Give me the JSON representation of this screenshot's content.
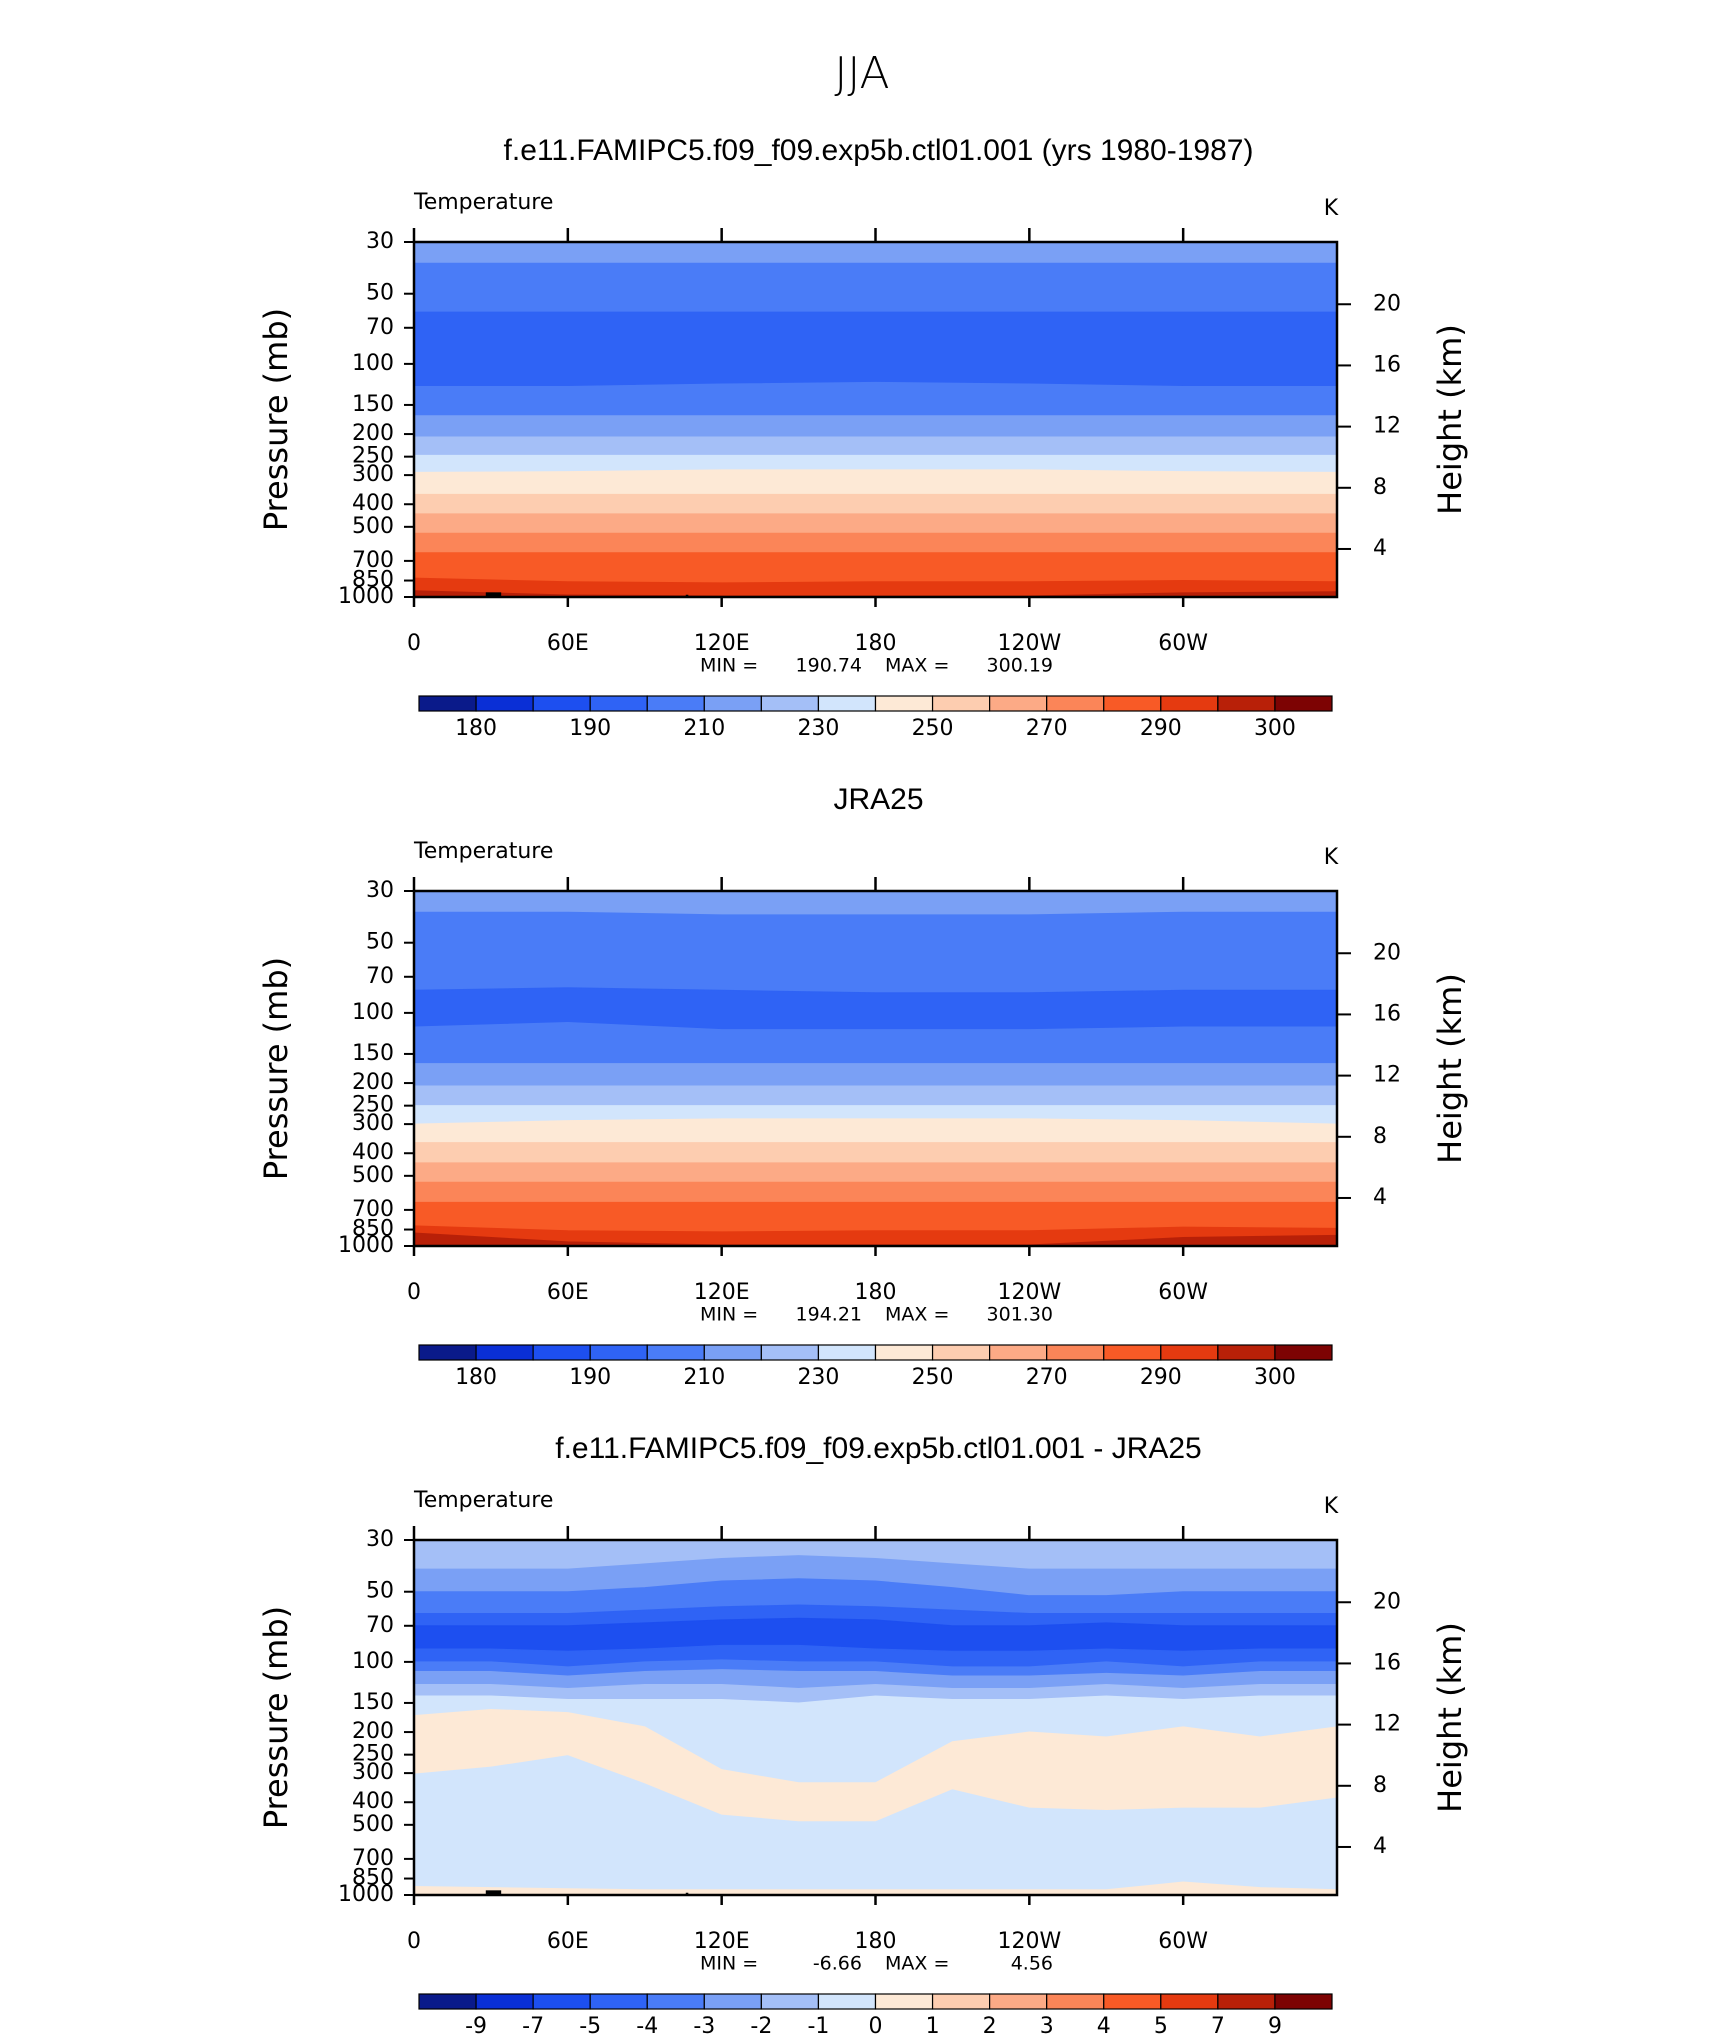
{
  "title": "JJA",
  "chart_data": [
    {
      "type": "contour",
      "title": "f.e11.FAMIPC5.f09_f09.exp5b.ctl01.001 (yrs 1980-1987)",
      "variable": "Temperature",
      "units": "K",
      "ylabel": "Pressure (mb)",
      "y2label": "Height (km)",
      "xlim": [
        0,
        360
      ],
      "xticks": [
        0,
        {
          "value": 60,
          "label": "60E"
        },
        {
          "value": 120,
          "label": "120E"
        },
        180,
        {
          "value": 240,
          "label": "120W"
        },
        {
          "value": 300,
          "label": "60W"
        }
      ],
      "ylim": [
        1000,
        30
      ],
      "ylog": true,
      "yticks": [
        30,
        50,
        70,
        100,
        150,
        200,
        250,
        300,
        400,
        500,
        700,
        850,
        1000
      ],
      "y2lim": [
        0.86,
        24.07
      ],
      "y2ticks": [
        4,
        8,
        12,
        16,
        20
      ],
      "stats": {
        "min_label": "MIN =",
        "min": 190.74,
        "max_label": "MAX =",
        "max": 300.19
      },
      "land_mask": true,
      "colorbar": {
        "levels": [
          180,
          185,
          190,
          200,
          210,
          220,
          230,
          240,
          250,
          260,
          270,
          280,
          290,
          295,
          300
        ],
        "label_every": 2,
        "colors": [
          "#0a1a8a",
          "#0a2fd6",
          "#1d4ff0",
          "#2f63f5",
          "#4a7cf7",
          "#7aa0f5",
          "#a4bff7",
          "#d2e5fc",
          "#fde9d6",
          "#fdcdb0",
          "#fcaa86",
          "#fb8558",
          "#f85a26",
          "#e53a10",
          "#b82008",
          "#7d0303"
        ]
      },
      "lon": [
        0,
        60,
        120,
        180,
        240,
        300,
        360
      ],
      "bands": [
        {
          "bin": 5,
          "top": [
            30,
            30,
            30,
            30,
            30,
            30,
            30
          ]
        },
        {
          "bin": 4,
          "top": [
            37,
            37,
            37,
            37,
            37,
            37,
            37
          ]
        },
        {
          "bin": 3,
          "top": [
            60,
            60,
            60,
            60,
            60,
            60,
            60
          ]
        },
        {
          "bin": 4,
          "top": [
            125,
            125,
            122,
            120,
            122,
            125,
            125
          ]
        },
        {
          "bin": 5,
          "top": [
            167,
            167,
            167,
            167,
            167,
            167,
            167
          ]
        },
        {
          "bin": 6,
          "top": [
            206,
            206,
            206,
            206,
            206,
            206,
            206
          ]
        },
        {
          "bin": 7,
          "top": [
            247,
            247,
            247,
            247,
            247,
            247,
            247
          ]
        },
        {
          "bin": 8,
          "top": [
            292,
            290,
            285,
            285,
            285,
            290,
            292
          ]
        },
        {
          "bin": 9,
          "top": [
            363,
            363,
            363,
            363,
            363,
            363,
            363
          ]
        },
        {
          "bin": 10,
          "top": [
            440,
            440,
            440,
            440,
            440,
            440,
            440
          ]
        },
        {
          "bin": 11,
          "top": [
            533,
            533,
            533,
            533,
            533,
            533,
            533
          ]
        },
        {
          "bin": 12,
          "top": [
            646,
            646,
            646,
            646,
            646,
            646,
            646
          ]
        },
        {
          "bin": 13,
          "top": [
            830,
            860,
            870,
            860,
            860,
            850,
            860
          ]
        },
        {
          "bin": 14,
          "top": [
            940,
            980,
            990,
            990,
            990,
            960,
            950
          ]
        }
      ]
    },
    {
      "type": "contour",
      "title": "JRA25",
      "variable": "Temperature",
      "units": "K",
      "ylabel": "Pressure (mb)",
      "y2label": "Height (km)",
      "xlim": [
        0,
        360
      ],
      "xticks": [
        0,
        {
          "value": 60,
          "label": "60E"
        },
        {
          "value": 120,
          "label": "120E"
        },
        180,
        {
          "value": 240,
          "label": "120W"
        },
        {
          "value": 300,
          "label": "60W"
        }
      ],
      "ylim": [
        1000,
        30
      ],
      "ylog": true,
      "yticks": [
        30,
        50,
        70,
        100,
        150,
        200,
        250,
        300,
        400,
        500,
        700,
        850,
        1000
      ],
      "y2lim": [
        0.86,
        24.07
      ],
      "y2ticks": [
        4,
        8,
        12,
        16,
        20
      ],
      "stats": {
        "min_label": "MIN =",
        "min": 194.21,
        "max_label": "MAX =",
        "max": {
          "value": 301.3,
          "label": "301.30"
        }
      },
      "land_mask": false,
      "colorbar": {
        "levels": [
          180,
          185,
          190,
          200,
          210,
          220,
          230,
          240,
          250,
          260,
          270,
          280,
          290,
          295,
          300
        ],
        "label_every": 2,
        "colors": [
          "#0a1a8a",
          "#0a2fd6",
          "#1d4ff0",
          "#2f63f5",
          "#4a7cf7",
          "#7aa0f5",
          "#a4bff7",
          "#d2e5fc",
          "#fde9d6",
          "#fdcdb0",
          "#fcaa86",
          "#fb8558",
          "#f85a26",
          "#e53a10",
          "#b82008",
          "#7d0303"
        ]
      },
      "lon": [
        0,
        60,
        120,
        180,
        240,
        300,
        360
      ],
      "bands": [
        {
          "bin": 5,
          "top": [
            30,
            30,
            30,
            30,
            30,
            30,
            30
          ]
        },
        {
          "bin": 4,
          "top": [
            37,
            37,
            38,
            38,
            38,
            37,
            37
          ]
        },
        {
          "bin": 3,
          "top": [
            80,
            78,
            80,
            82,
            82,
            80,
            80
          ]
        },
        {
          "bin": 4,
          "top": [
            115,
            110,
            118,
            118,
            118,
            115,
            115
          ]
        },
        {
          "bin": 5,
          "top": [
            165,
            165,
            165,
            165,
            165,
            165,
            165
          ]
        },
        {
          "bin": 6,
          "top": [
            206,
            206,
            206,
            206,
            206,
            206,
            206
          ]
        },
        {
          "bin": 7,
          "top": [
            250,
            250,
            250,
            250,
            250,
            250,
            250
          ]
        },
        {
          "bin": 8,
          "top": [
            300,
            290,
            285,
            285,
            285,
            290,
            300
          ]
        },
        {
          "bin": 9,
          "top": [
            360,
            360,
            360,
            360,
            360,
            360,
            360
          ]
        },
        {
          "bin": 10,
          "top": [
            440,
            440,
            440,
            440,
            440,
            440,
            440
          ]
        },
        {
          "bin": 11,
          "top": [
            533,
            533,
            533,
            533,
            533,
            533,
            533
          ]
        },
        {
          "bin": 12,
          "top": [
            650,
            650,
            650,
            650,
            650,
            650,
            650
          ]
        },
        {
          "bin": 13,
          "top": [
            820,
            860,
            870,
            860,
            860,
            830,
            840
          ]
        },
        {
          "bin": 14,
          "top": [
            880,
            960,
            990,
            990,
            990,
            920,
            900
          ]
        }
      ]
    },
    {
      "type": "contour",
      "title": "f.e11.FAMIPC5.f09_f09.exp5b.ctl01.001 - JRA25",
      "variable": "Temperature",
      "units": "K",
      "ylabel": "Pressure (mb)",
      "y2label": "Height (km)",
      "xlim": [
        0,
        360
      ],
      "xticks": [
        0,
        {
          "value": 60,
          "label": "60E"
        },
        {
          "value": 120,
          "label": "120E"
        },
        180,
        {
          "value": 240,
          "label": "120W"
        },
        {
          "value": 300,
          "label": "60W"
        }
      ],
      "ylim": [
        1000,
        30
      ],
      "ylog": true,
      "yticks": [
        30,
        50,
        70,
        100,
        150,
        200,
        250,
        300,
        400,
        500,
        700,
        850,
        1000
      ],
      "y2lim": [
        0.86,
        24.07
      ],
      "y2ticks": [
        4,
        8,
        12,
        16,
        20
      ],
      "stats": {
        "min_label": "MIN =",
        "min": -6.66,
        "max_label": "MAX =",
        "max": 4.56
      },
      "land_mask": true,
      "colorbar": {
        "levels": [
          -9,
          -7,
          -5,
          -4,
          -3,
          -2,
          -1,
          0,
          1,
          2,
          3,
          4,
          5,
          7,
          9
        ],
        "label_every": 1,
        "colors": [
          "#0a1a8a",
          "#0a2fd6",
          "#1d4ff0",
          "#2f63f5",
          "#4a7cf7",
          "#7aa0f5",
          "#a4bff7",
          "#d2e5fc",
          "#fde9d6",
          "#fdcdb0",
          "#fcaa86",
          "#fb8558",
          "#f85a26",
          "#e53a10",
          "#b82008",
          "#7d0303"
        ]
      },
      "lon": [
        0,
        30,
        60,
        90,
        120,
        150,
        180,
        210,
        240,
        270,
        300,
        330,
        360
      ],
      "bands": [
        {
          "bin": 6,
          "top": [
            30,
            30,
            30,
            30,
            30,
            30,
            30,
            30,
            30,
            30,
            30,
            30,
            30
          ]
        },
        {
          "bin": 5,
          "top": [
            40,
            40,
            40,
            38,
            36,
            35,
            36,
            38,
            40,
            40,
            40,
            40,
            40
          ]
        },
        {
          "bin": 4,
          "top": [
            50,
            50,
            50,
            48,
            45,
            44,
            45,
            48,
            52,
            52,
            50,
            50,
            50
          ]
        },
        {
          "bin": 3,
          "top": [
            62,
            62,
            62,
            60,
            58,
            57,
            58,
            60,
            62,
            62,
            62,
            62,
            62
          ]
        },
        {
          "bin": 2,
          "top": [
            70,
            70,
            70,
            68,
            66,
            65,
            66,
            70,
            70,
            68,
            70,
            70,
            70
          ]
        },
        {
          "bin": 3,
          "top": [
            88,
            88,
            90,
            88,
            85,
            85,
            88,
            90,
            90,
            88,
            90,
            88,
            88
          ]
        },
        {
          "bin": 4,
          "top": [
            100,
            100,
            105,
            100,
            98,
            100,
            100,
            105,
            105,
            100,
            105,
            100,
            100
          ]
        },
        {
          "bin": 5,
          "top": [
            110,
            110,
            115,
            110,
            108,
            110,
            110,
            115,
            115,
            112,
            115,
            110,
            110
          ]
        },
        {
          "bin": 6,
          "top": [
            125,
            125,
            130,
            125,
            125,
            130,
            125,
            130,
            130,
            125,
            130,
            125,
            125
          ]
        },
        {
          "bin": 7,
          "top": [
            140,
            140,
            145,
            145,
            145,
            150,
            140,
            145,
            145,
            140,
            145,
            140,
            140
          ]
        },
        {
          "bin": 8,
          "top": [
            170,
            160,
            165,
            190,
            290,
            330,
            330,
            220,
            200,
            210,
            190,
            210,
            190
          ],
          "bottom": [
            300,
            280,
            250,
            330,
            450,
            480,
            480,
            350,
            420,
            430,
            420,
            420,
            380
          ]
        },
        {
          "bin": 8,
          "top": [
            920,
            930,
            940,
            950,
            950,
            950,
            950,
            950,
            950,
            950,
            880,
            930,
            950
          ],
          "bottom": [
            1000,
            1000,
            1000,
            1000,
            1000,
            1000,
            1000,
            1000,
            1000,
            1000,
            1000,
            1000,
            1000
          ]
        }
      ]
    }
  ]
}
